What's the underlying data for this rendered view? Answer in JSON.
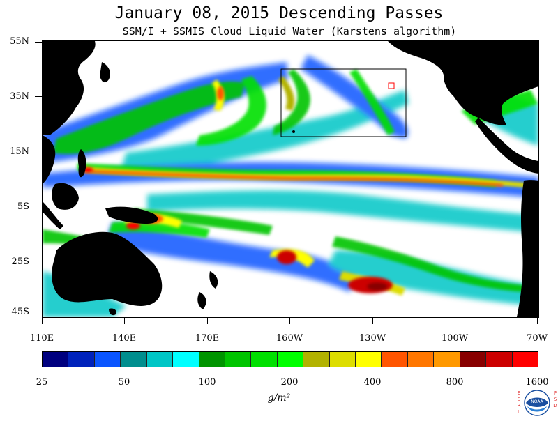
{
  "header": {
    "title": "January 08, 2015  Descending Passes",
    "subtitle": "SSM/I + SSMIS Cloud Liquid Water (Karstens algorithm)"
  },
  "map": {
    "lat_labels": [
      "55N",
      "35N",
      "15N",
      "5S",
      "25S",
      "45S"
    ],
    "lon_labels": [
      "110E",
      "140E",
      "170E",
      "160W",
      "130W",
      "100W",
      "70W"
    ],
    "highlight_box": "northeast Pacific rectangle",
    "colors": {
      "land": "#000000",
      "no_data": "#ffffff"
    }
  },
  "colorbar": {
    "colors": [
      "#00007f",
      "#0022bb",
      "#0a55ff",
      "#008e8e",
      "#00c6c6",
      "#00ffff",
      "#009400",
      "#00c400",
      "#00e000",
      "#00ff00",
      "#b2b200",
      "#dddd00",
      "#ffff00",
      "#ff5500",
      "#ff7700",
      "#ff9900",
      "#880000",
      "#cc0000",
      "#ff0000"
    ],
    "labels": [
      "25",
      "50",
      "100",
      "200",
      "400",
      "800",
      "1600"
    ],
    "units": "g/m²"
  },
  "logo": {
    "left_letters": "ESRL",
    "right_letters": "PSD",
    "center_text": "NOAA"
  }
}
